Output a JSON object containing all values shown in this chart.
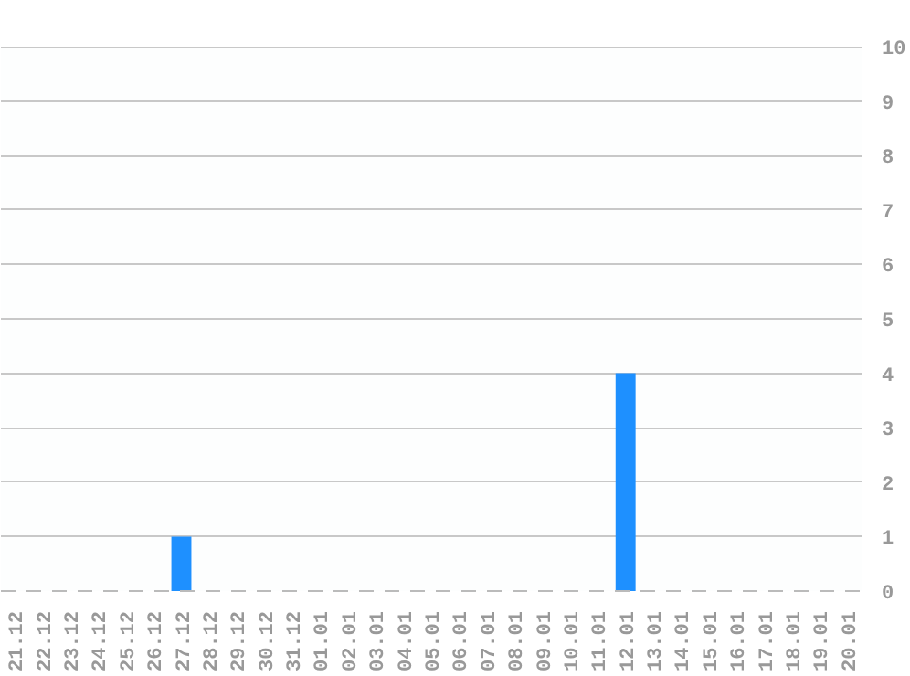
{
  "chart_data": {
    "type": "bar",
    "categories": [
      "21.12",
      "22.12",
      "23.12",
      "24.12",
      "25.12",
      "26.12",
      "27.12",
      "28.12",
      "29.12",
      "30.12",
      "31.12",
      "01.01",
      "02.01",
      "03.01",
      "04.01",
      "05.01",
      "06.01",
      "07.01",
      "08.01",
      "09.01",
      "10.01",
      "11.01",
      "12.01",
      "13.01",
      "14.01",
      "15.01",
      "16.01",
      "17.01",
      "18.01",
      "19.01",
      "20.01"
    ],
    "values": [
      0,
      0,
      0,
      0,
      0,
      0,
      1,
      0,
      0,
      0,
      0,
      0,
      0,
      0,
      0,
      0,
      0,
      0,
      0,
      0,
      0,
      0,
      4,
      0,
      0,
      0,
      0,
      0,
      0,
      0,
      0
    ],
    "color": "#1e90ff",
    "ylim": [
      0,
      10
    ],
    "yticks": [
      0,
      1,
      2,
      3,
      4,
      5,
      6,
      7,
      8,
      9,
      10
    ],
    "grid": "y"
  }
}
